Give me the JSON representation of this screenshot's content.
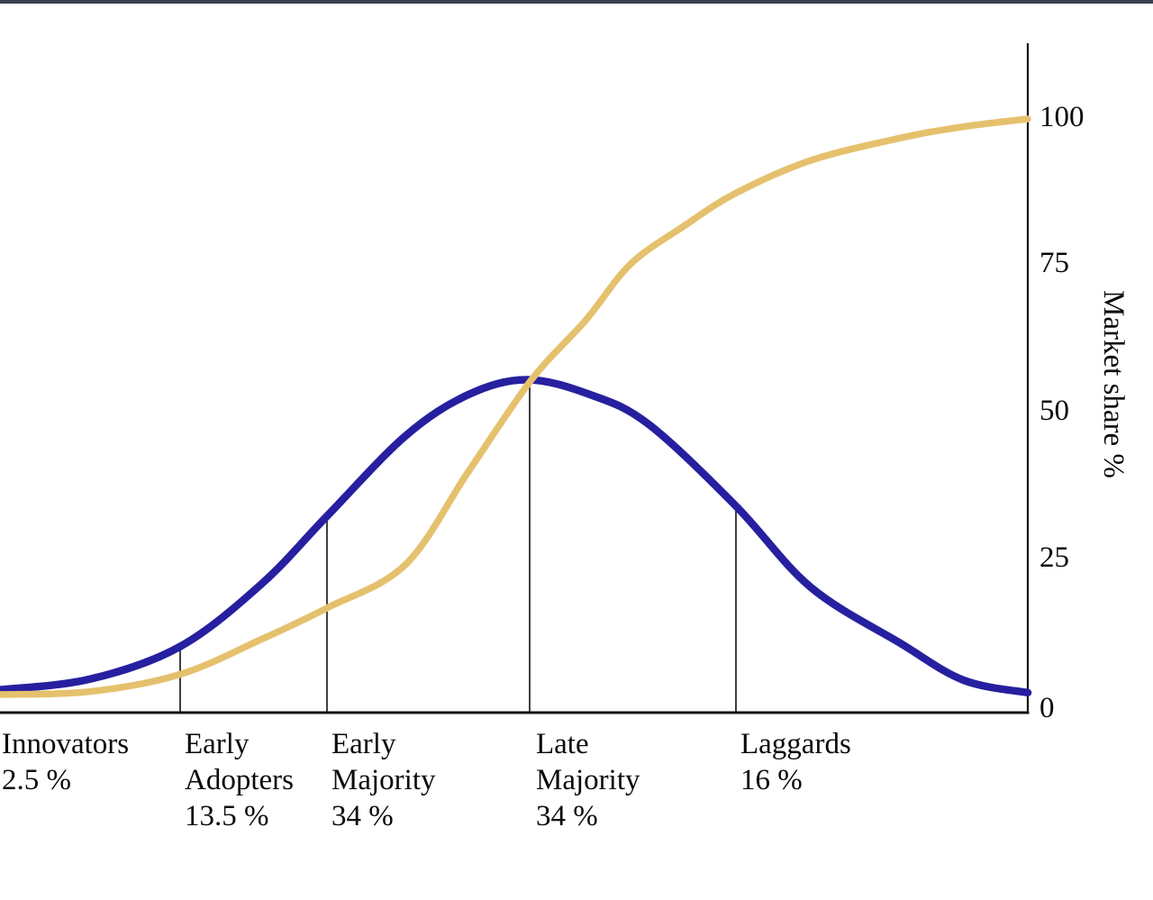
{
  "page": {
    "background": "#FFFFFF",
    "top_bar_color": "#394050",
    "axis_color": "#111111"
  },
  "chart_data": {
    "type": "line",
    "title": "",
    "xlabel": "",
    "ylabel": "Market share %",
    "ylim": [
      0,
      112
    ],
    "yticks": [
      {
        "value": 100,
        "label": "100"
      },
      {
        "value": 75,
        "label": "75"
      },
      {
        "value": 50,
        "label": "50"
      },
      {
        "value": 25,
        "label": "25"
      },
      {
        "value": 0,
        "label": "0"
      }
    ],
    "grid": false,
    "legend": "none",
    "x_units": "unlabeled adoption-time axis, plot positions 0-1141 px",
    "series": [
      {
        "name": "Adopter segments (bell curve)",
        "color": "#2620A0",
        "stroke_width": 8.5,
        "points": [
          [
            0,
            3.7
          ],
          [
            100,
            5.5
          ],
          [
            200,
            11
          ],
          [
            290,
            21.5
          ],
          [
            363,
            33
          ],
          [
            450,
            46.5
          ],
          [
            520,
            53.5
          ],
          [
            585,
            56
          ],
          [
            655,
            53.5
          ],
          [
            720,
            48.5
          ],
          [
            817,
            34.7
          ],
          [
            900,
            21
          ],
          [
            1000,
            11.5
          ],
          [
            1070,
            5.3
          ],
          [
            1141,
            3.2
          ]
        ]
      },
      {
        "name": "Cumulative market share (S-curve)",
        "color": "#E5C16D",
        "stroke_width": 7.5,
        "points": [
          [
            0,
            2.9
          ],
          [
            100,
            3.4
          ],
          [
            200,
            6.3
          ],
          [
            290,
            12.2
          ],
          [
            363,
            17.5
          ],
          [
            450,
            24.8
          ],
          [
            520,
            40.5
          ],
          [
            590,
            56
          ],
          [
            650,
            66
          ],
          [
            700,
            75.5
          ],
          [
            760,
            82
          ],
          [
            817,
            87.5
          ],
          [
            900,
            93
          ],
          [
            1000,
            96.8
          ],
          [
            1070,
            98.7
          ],
          [
            1141,
            100
          ]
        ]
      }
    ],
    "segment_dividers": [
      {
        "x": 200,
        "top_pct": 11
      },
      {
        "x": 363,
        "top_pct": 32.8
      },
      {
        "x": 588,
        "top_pct": 54.9
      },
      {
        "x": 817,
        "top_pct": 34.5
      }
    ],
    "segments": [
      {
        "name": "Innovators",
        "share": "2.5 %",
        "lines": [
          "Innovators",
          "2.5 %"
        ]
      },
      {
        "name": "Early Adopters",
        "share": "13.5 %",
        "lines": [
          "Early",
          "Adopters",
          "13.5 %"
        ]
      },
      {
        "name": "Early Majority",
        "share": "34 %",
        "lines": [
          "Early",
          "Majority",
          "34 %"
        ]
      },
      {
        "name": "Late Majority",
        "share": "34 %",
        "lines": [
          "Late",
          "Majority",
          "34 %"
        ]
      },
      {
        "name": "Laggards",
        "share": "16 %",
        "lines": [
          "Laggards",
          "16 %"
        ]
      }
    ]
  }
}
